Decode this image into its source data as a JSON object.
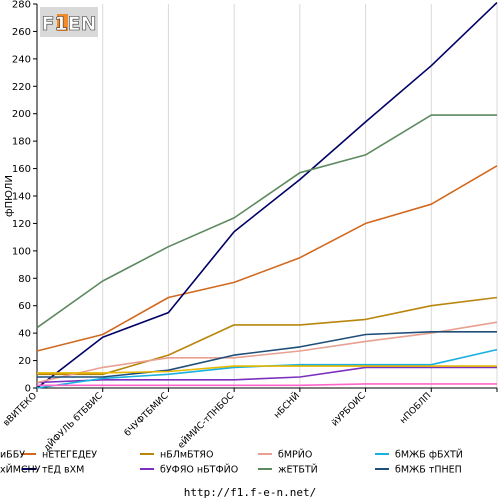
{
  "chart_data": {
    "type": "line",
    "ylabel": "фПЮЛИ",
    "ylim": [
      0,
      280
    ],
    "yticks": [
      0,
      20,
      40,
      60,
      80,
      100,
      120,
      140,
      160,
      180,
      200,
      220,
      240,
      260,
      280
    ],
    "grid": "vertical",
    "legend_position": "bottom",
    "categories": [
      "вВИТЕКО",
      "дЙФУЛЬ бТБВИС",
      "бЧУФТБМИС",
      "еЙМИС-тПНБОС",
      "нБСНЙ",
      "йУРБОИС",
      "нПОБЛП",
      ""
    ],
    "series": [
      {
        "name": "нЕТЕГЕДЕУ",
        "color": "#d2691e",
        "values": [
          27,
          39,
          66,
          77,
          95,
          120,
          134,
          162
        ]
      },
      {
        "name": "тЕД вХМ",
        "color": "#000066",
        "values": [
          0,
          37,
          55,
          114,
          152,
          194,
          235,
          281
        ]
      },
      {
        "name": "нБЛмБТЯО",
        "color": "#b8860b",
        "values": [
          10,
          10,
          24,
          46,
          46,
          50,
          60,
          66
        ]
      },
      {
        "name": "бУФЯО нБТФЙО",
        "color": "#7b2fbe",
        "values": [
          4,
          6,
          6,
          6,
          8,
          15,
          15,
          15
        ]
      },
      {
        "name": "бМРЙО",
        "color": "#e8a090",
        "values": [
          4,
          15,
          22,
          22,
          27,
          34,
          40,
          48
        ]
      },
      {
        "name": "жЕТБТЙ",
        "color": "#5f8a5f",
        "values": [
          44,
          78,
          103,
          124,
          157,
          170,
          199,
          199
        ]
      },
      {
        "name": "бМЖБ фБХТЙ",
        "color": "#1ab0e0",
        "values": [
          0,
          7,
          10,
          15,
          17,
          17,
          17,
          28
        ]
      },
      {
        "name": "бМЖБ тПНЕП",
        "color": "#1f4e79",
        "values": [
          8,
          8,
          13,
          24,
          30,
          39,
          41,
          41
        ]
      },
      {
        "name": "иББУ",
        "color": "#e6b800",
        "values": [
          11,
          11,
          12,
          16,
          16,
          16,
          16,
          16
        ]
      },
      {
        "name": "хЙМСНУ",
        "color": "#ff66cc",
        "values": [
          2,
          2,
          2,
          2,
          2,
          3,
          3,
          3
        ]
      }
    ]
  },
  "logo": {
    "text": "F1EN"
  },
  "footer": {
    "url": "http://f1.f-e-n.net/"
  }
}
